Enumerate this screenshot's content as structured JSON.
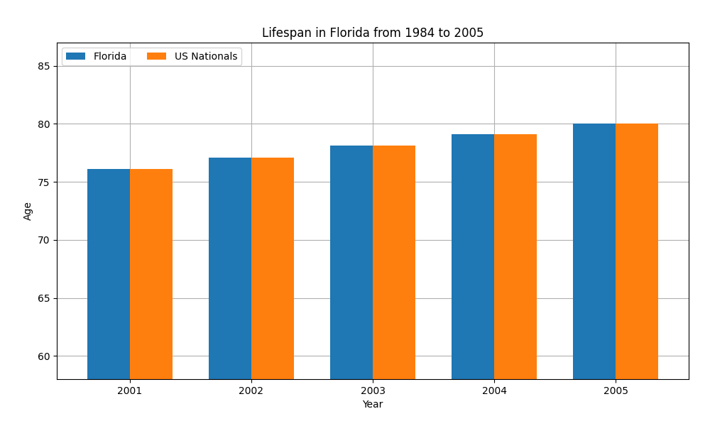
{
  "chart_data": {
    "type": "bar",
    "title": "Lifespan in Florida from 1984 to 2005",
    "x_label": "Year",
    "y_label": "Age",
    "categories": [
      "2001",
      "2002",
      "2003",
      "2004",
      "2005"
    ],
    "series": [
      {
        "name": "Florida",
        "values": [
          76.1,
          77.1,
          78.1,
          79.1,
          80.0
        ]
      },
      {
        "name": "US Nationals",
        "values": [
          76.1,
          77.1,
          78.1,
          79.1,
          80.0
        ]
      }
    ],
    "ylim": [
      58,
      87
    ],
    "yticks": [
      60,
      65,
      70,
      75,
      80,
      85
    ],
    "grid": true,
    "legend": "upper left"
  }
}
